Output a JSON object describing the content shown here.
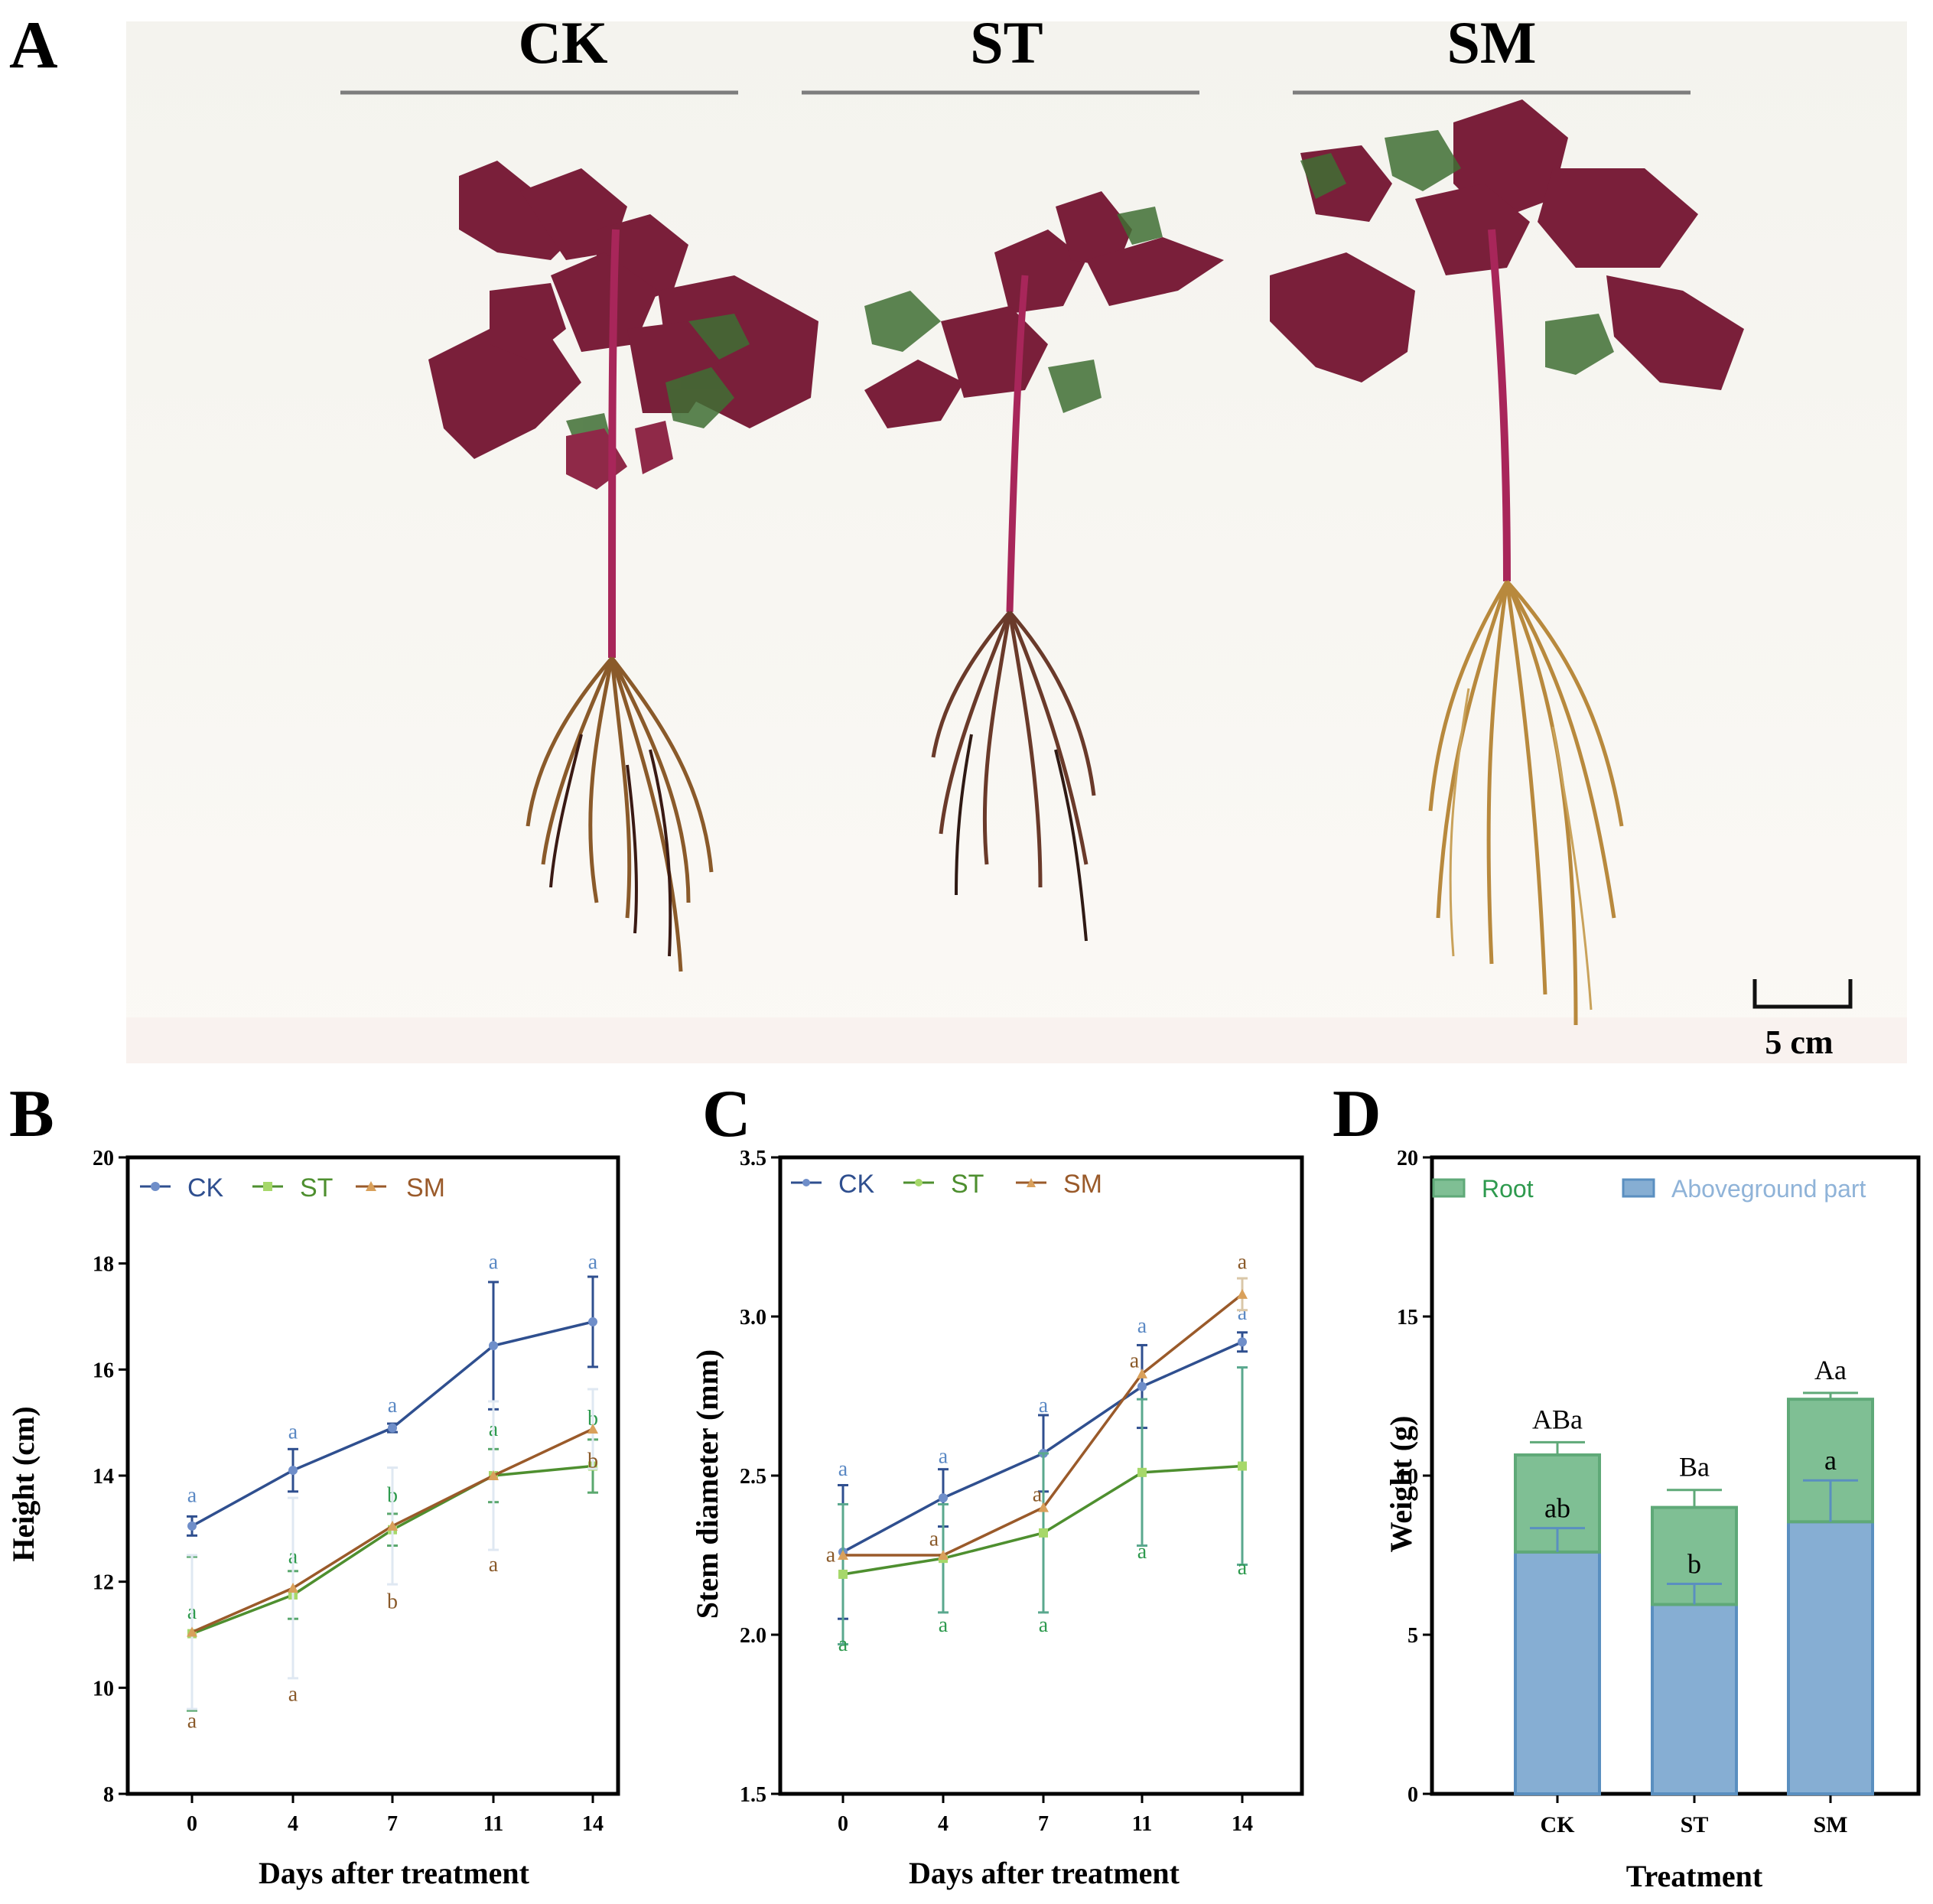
{
  "figure": {
    "panel_labels": [
      "A",
      "B",
      "C",
      "D"
    ]
  },
  "photo": {
    "group_labels": [
      "CK",
      "ST",
      "SM"
    ],
    "scale_bar_label": "5 cm"
  },
  "colors": {
    "CK": "#2f4f8f",
    "ST": "#4e8f2f",
    "SM": "#9a5a2a",
    "CK_marker": "#6f8ec9",
    "ST_marker": "#a6d86a",
    "SM_marker": "#d9a05b",
    "letter_CK": "#5b89c4",
    "letter_ST": "#2e9a4e",
    "letter_SM": "#8a5a2a",
    "root_fill": "#7fbf94",
    "root_stroke": "#5fa978",
    "above_fill": "#86aed3",
    "above_stroke": "#5a8fc0"
  },
  "chart_data": [
    {
      "id": "B",
      "type": "line",
      "xlabel": "Days after treatment",
      "ylabel": "Height (cm)",
      "x": [
        0,
        4,
        7,
        11,
        14
      ],
      "ylim": [
        8,
        20
      ],
      "yticks": [
        8,
        10,
        12,
        14,
        16,
        18,
        20
      ],
      "series": [
        {
          "name": "CK",
          "values": [
            13.05,
            14.1,
            14.9,
            16.45,
            16.9
          ],
          "err": [
            0.18,
            0.4,
            0.08,
            1.2,
            0.85
          ],
          "letters": [
            "a",
            "a",
            "a",
            "a",
            "a"
          ]
        },
        {
          "name": "ST",
          "values": [
            11.02,
            11.75,
            12.98,
            14.0,
            14.18
          ],
          "err": [
            1.45,
            0.45,
            0.3,
            0.5,
            0.5
          ],
          "letters": [
            "a",
            "a",
            "b",
            "a",
            "b"
          ]
        },
        {
          "name": "SM",
          "values": [
            11.05,
            11.88,
            13.05,
            14.0,
            14.88
          ],
          "err": [
            1.45,
            1.7,
            1.1,
            1.4,
            0.75
          ],
          "letters": [
            "a",
            "a",
            "b",
            "a",
            "b"
          ]
        }
      ]
    },
    {
      "id": "C",
      "type": "line",
      "xlabel": "Days after treatment",
      "ylabel": "Stem diameter (mm)",
      "x": [
        0,
        4,
        7,
        11,
        14
      ],
      "ylim": [
        1.5,
        3.5
      ],
      "yticks": [
        1.5,
        2.0,
        2.5,
        3.0,
        3.5
      ],
      "series": [
        {
          "name": "CK",
          "values": [
            2.26,
            2.43,
            2.57,
            2.78,
            2.92
          ],
          "err": [
            0.21,
            0.09,
            0.12,
            0.13,
            0.03
          ],
          "letters": [
            "a",
            "a",
            "a",
            "a",
            "a"
          ]
        },
        {
          "name": "ST",
          "values": [
            2.19,
            2.24,
            2.32,
            2.51,
            2.53
          ],
          "err": [
            0.22,
            0.17,
            0.25,
            0.23,
            0.31
          ],
          "letters": [
            "a",
            "a",
            "a",
            "a",
            "a"
          ]
        },
        {
          "name": "SM",
          "values": [
            2.25,
            2.25,
            2.4,
            2.82,
            3.07
          ],
          "err": [
            0.0,
            0.0,
            0.0,
            0.0,
            0.05
          ],
          "letters": [
            "a",
            "a",
            "a",
            "a",
            "a"
          ]
        }
      ]
    },
    {
      "id": "D",
      "type": "bar",
      "stacked": true,
      "xlabel": "Treatment",
      "ylabel": "Weight (g)",
      "categories": [
        "CK",
        "ST",
        "SM"
      ],
      "ylim": [
        0,
        20
      ],
      "yticks": [
        0,
        5,
        10,
        15,
        20
      ],
      "series": [
        {
          "name": "Aboveground part",
          "values": [
            7.6,
            5.95,
            8.55
          ],
          "err": [
            0.75,
            0.65,
            1.3
          ],
          "letters": [
            "ab",
            "b",
            "a"
          ]
        },
        {
          "name": "Root",
          "values": [
            3.05,
            3.05,
            3.85
          ],
          "err": [
            0.4,
            0.55,
            0.2
          ],
          "letters": [
            "ABa",
            "Ba",
            "Aa"
          ]
        }
      ],
      "legend": [
        "Root",
        "Aboveground part"
      ]
    }
  ]
}
